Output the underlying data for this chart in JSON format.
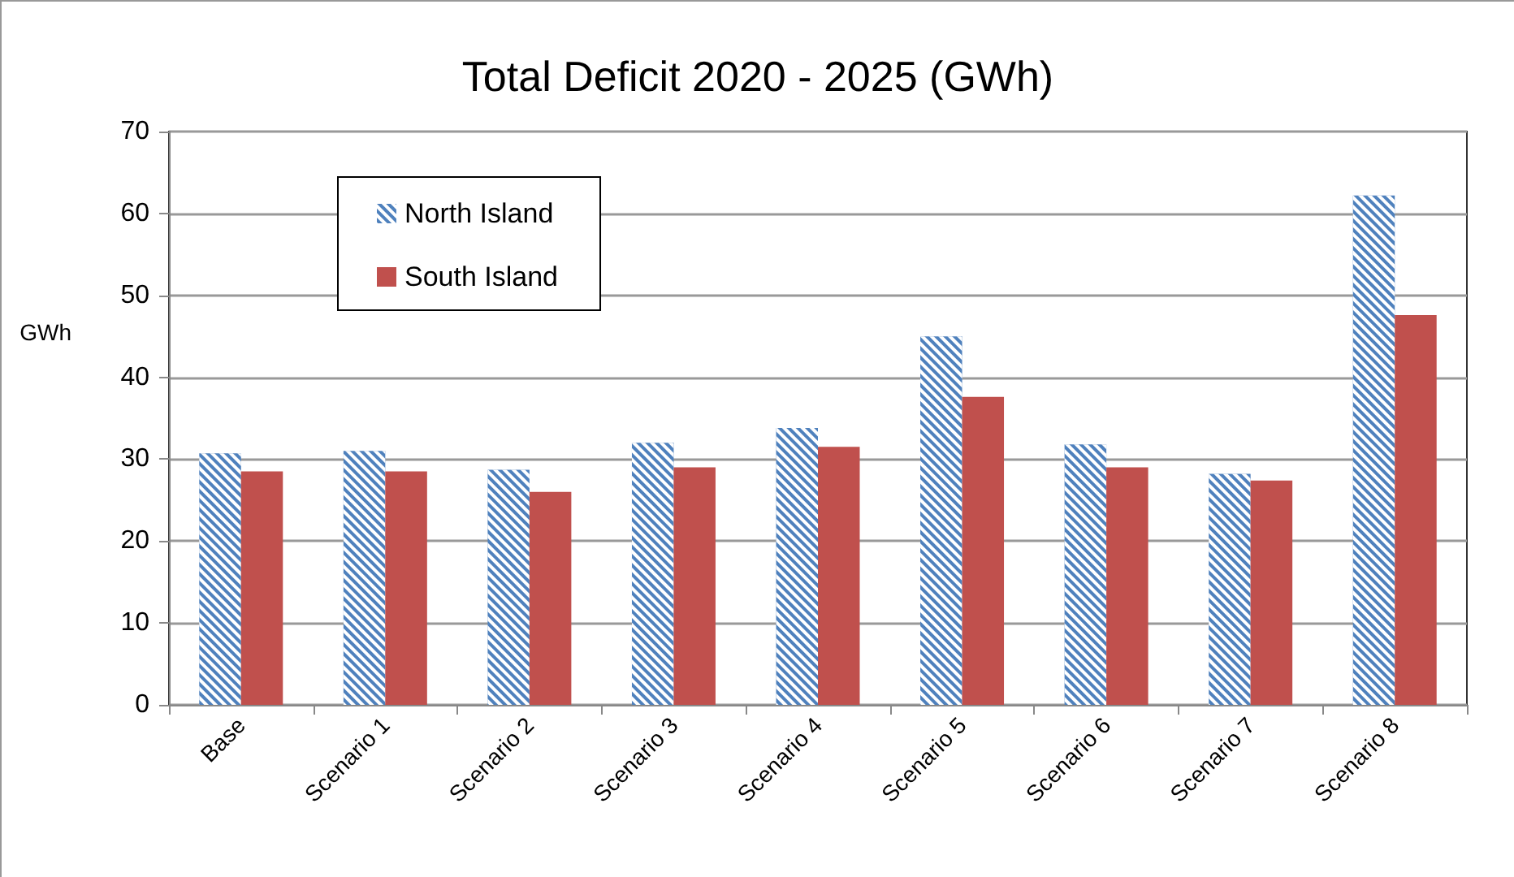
{
  "chart_data": {
    "type": "bar",
    "title": "Total Deficit 2020 - 2025 (GWh)",
    "ylabel": "GWh",
    "categories": [
      "Base",
      "Scenario 1",
      "Scenario 2",
      "Scenario 3",
      "Scenario 4",
      "Scenario 5",
      "Scenario 6",
      "Scenario 7",
      "Scenario 8"
    ],
    "series": [
      {
        "name": "North Island",
        "color": "#4f81bd",
        "values": [
          30.7,
          31.0,
          28.7,
          32.0,
          33.8,
          45.0,
          31.8,
          28.2,
          62.2
        ]
      },
      {
        "name": "South Island",
        "color": "#c0504d",
        "values": [
          28.5,
          28.5,
          26.0,
          29.0,
          31.5,
          37.6,
          29.0,
          27.4,
          47.6
        ]
      }
    ],
    "ylim": [
      0,
      70
    ],
    "yticks": [
      0,
      10,
      20,
      30,
      40,
      50,
      60,
      70
    ],
    "grid": "y",
    "legend": "top left"
  }
}
